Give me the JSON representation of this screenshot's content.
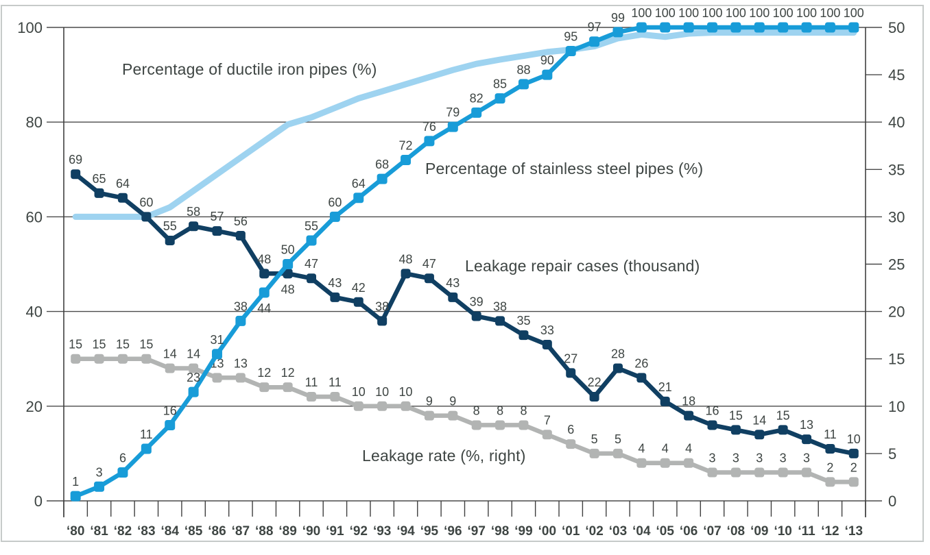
{
  "chart_data": {
    "type": "line",
    "title": "",
    "x_labels": [
      "‘80",
      "‘81",
      "‘82",
      "‘83",
      "‘84",
      "‘85",
      "‘86",
      "‘87",
      "‘88",
      "‘89",
      "‘90",
      "‘91",
      "‘92",
      "‘93",
      "‘94",
      "‘95",
      "‘96",
      "‘97",
      "‘98",
      "‘99",
      "‘00",
      "‘01",
      "‘02",
      "‘03",
      "‘04",
      "‘05",
      "‘06",
      "‘07",
      "‘08",
      "‘09",
      "‘10",
      "‘11",
      "‘12",
      "‘13"
    ],
    "left_axis": {
      "min": 0,
      "max": 100,
      "ticks": [
        0,
        20,
        40,
        60,
        80,
        100
      ]
    },
    "right_axis": {
      "min": 0,
      "max": 50,
      "ticks": [
        0,
        5,
        10,
        15,
        20,
        25,
        30,
        35,
        40,
        45,
        50
      ]
    },
    "grid": "horizontal-on",
    "legend_position": "inline-annotations",
    "series": [
      {
        "name": "Percentage of ductile iron pipes (%)",
        "key": "ductile-iron",
        "axis": "left",
        "color": "#9ed3f0",
        "markers": false,
        "labels": false,
        "estimated": true,
        "values": [
          60,
          60,
          60,
          60,
          62,
          65.5,
          69,
          72.5,
          76,
          79.5,
          81,
          83,
          85,
          86.5,
          88,
          89.5,
          91,
          92.3,
          93.2,
          94,
          94.8,
          95.3,
          96,
          97.7,
          98.5,
          98,
          98.7,
          98.9,
          98.9,
          98.9,
          98.9,
          98.9,
          98.9,
          98.9
        ]
      },
      {
        "name": "Percentage of stainless steel pipes (%)",
        "key": "stainless-steel",
        "axis": "left",
        "color": "#189cd8",
        "markers": true,
        "labels": true,
        "label_below_indices": [
          8
        ],
        "values": [
          1,
          3,
          6,
          11,
          16,
          23,
          31,
          38,
          44,
          50,
          55,
          60,
          64,
          68,
          72,
          76,
          79,
          82,
          85,
          88,
          90,
          95,
          97,
          99,
          100,
          100,
          100,
          100,
          100,
          100,
          100,
          100,
          100,
          100
        ]
      },
      {
        "name": "Leakage repair cases (thousand)",
        "key": "repair-cases",
        "axis": "left",
        "color": "#103f62",
        "markers": true,
        "labels": true,
        "label_below_indices": [
          9
        ],
        "values": [
          69,
          65,
          64,
          60,
          55,
          58,
          57,
          56,
          48,
          48,
          47,
          43,
          42,
          38,
          48,
          47,
          43,
          39,
          38,
          35,
          33,
          27,
          22,
          28,
          26,
          21,
          18,
          16,
          15,
          14,
          15,
          13,
          11,
          10
        ]
      },
      {
        "name": "Leakage rate (%, right)",
        "key": "leakage-rate",
        "axis": "right",
        "color": "#b2b4b3",
        "markers": true,
        "labels": true,
        "label_below_indices": [],
        "values": [
          15,
          15,
          15,
          15,
          14,
          14,
          13,
          13,
          12,
          12,
          11,
          11,
          10,
          10,
          10,
          9,
          9,
          8,
          8,
          8,
          7,
          6,
          5,
          5,
          4,
          4,
          4,
          3,
          3,
          3,
          3,
          3,
          2,
          2
        ]
      }
    ],
    "draw_order": [
      0,
      3,
      2,
      1
    ],
    "colors": {
      "grid": "#4a4a4a",
      "axis": "#3f3f3f",
      "tick_label": "#3e4543",
      "data_label": "#3e4543",
      "frame_border": "#c6cac9",
      "background": "#ffffff"
    }
  }
}
